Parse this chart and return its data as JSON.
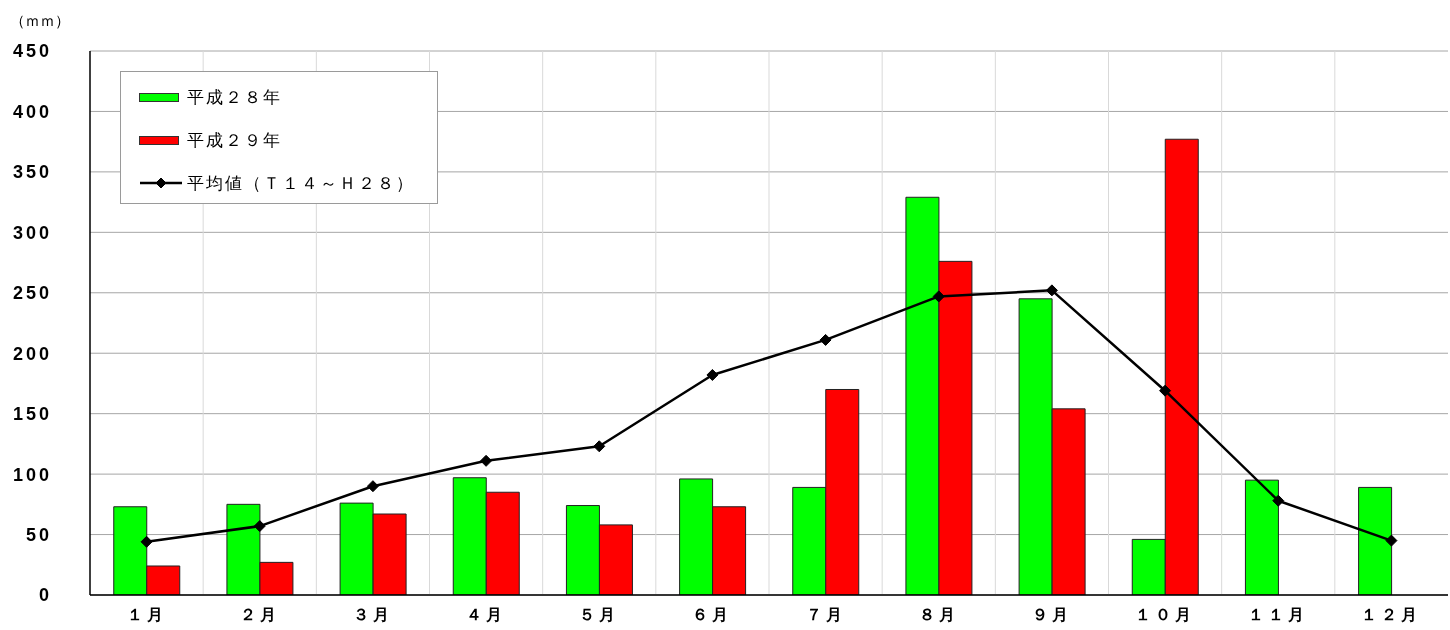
{
  "chart_data": {
    "type": "bar",
    "ylabel": "（ｍｍ）",
    "categories": [
      "１月",
      "２月",
      "３月",
      "４月",
      "５月",
      "６月",
      "７月",
      "８月",
      "９月",
      "１０月",
      "１１月",
      "１２月"
    ],
    "series": [
      {
        "name": "平成２８年",
        "color": "#00ff00",
        "values": [
          73,
          75,
          76,
          97,
          74,
          96,
          89,
          329,
          245,
          46,
          95,
          89
        ]
      },
      {
        "name": "平成２９年",
        "color": "#ff0000",
        "values": [
          24,
          27,
          67,
          85,
          58,
          73,
          170,
          276,
          154,
          377,
          null,
          null
        ]
      },
      {
        "name": "平均値（Ｔ１４～Ｈ２８）",
        "type": "line",
        "color": "#000000",
        "values": [
          44,
          57,
          90,
          111,
          123,
          182,
          211,
          247,
          252,
          169,
          78,
          45
        ]
      }
    ],
    "ylim": [
      0,
      450
    ],
    "yticks": [
      0,
      50,
      100,
      150,
      200,
      250,
      300,
      350,
      400,
      450
    ],
    "grid": true,
    "legend": "top left",
    "marker": "diamond",
    "line_style": "solid"
  }
}
